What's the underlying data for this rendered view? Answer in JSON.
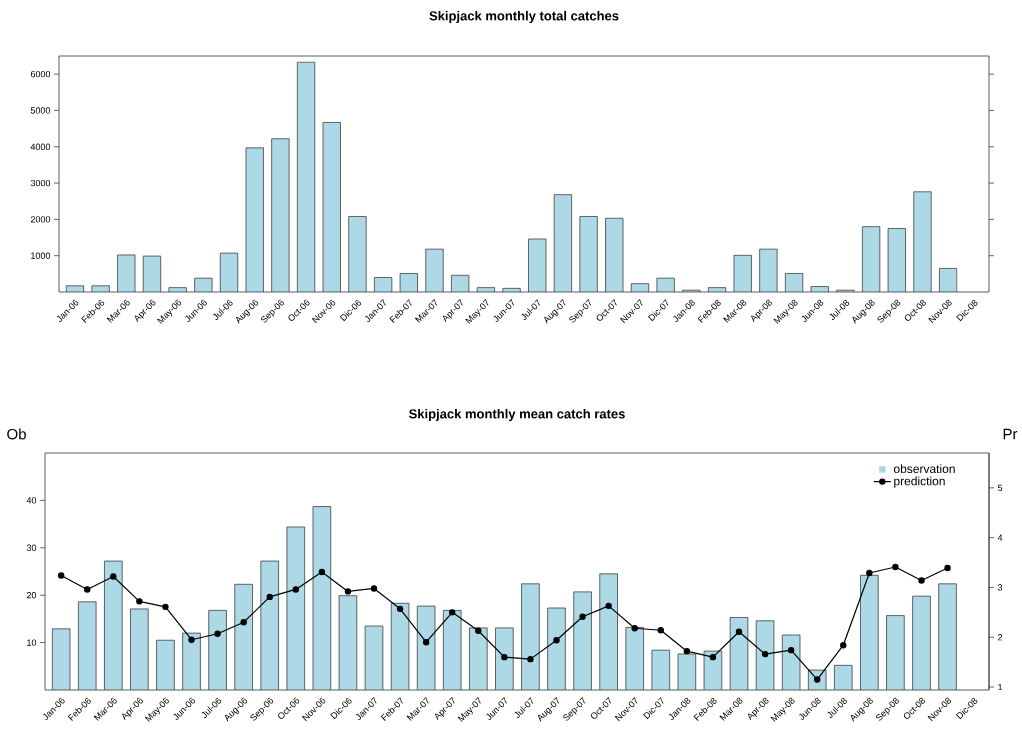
{
  "chart_data": [
    {
      "type": "bar",
      "title": "Skipjack monthly total catches",
      "categories": [
        "Jan-06",
        "Feb-06",
        "Mar-06",
        "Apr-06",
        "May-06",
        "Jun-06",
        "Jul-06",
        "Aug-06",
        "Sep-06",
        "Oct-06",
        "Nov-06",
        "Dic-06",
        "Jan-07",
        "Feb-07",
        "Mar-07",
        "Apr-07",
        "May-07",
        "Jun-07",
        "Jul-07",
        "Aug-07",
        "Sep-07",
        "Oct-07",
        "Nov-07",
        "Dic-07",
        "Jan-08",
        "Feb-08",
        "Mar-08",
        "Apr-08",
        "May-08",
        "Jun-08",
        "Jul-08",
        "Aug-08",
        "Sep-08",
        "Oct-08",
        "Nov-08",
        "Dic-08"
      ],
      "values": [
        170,
        170,
        1020,
        990,
        120,
        380,
        1070,
        3970,
        4220,
        6330,
        4670,
        2080,
        400,
        510,
        1180,
        460,
        120,
        100,
        1460,
        2680,
        2080,
        2030,
        230,
        380,
        50,
        120,
        1010,
        1180,
        510,
        150,
        50,
        1800,
        1750,
        2760,
        650,
        null
      ],
      "color": "#add8e6",
      "ylim": [
        0,
        6500
      ],
      "yticks": [
        1000,
        2000,
        3000,
        4000,
        5000,
        6000
      ]
    },
    {
      "type": "bar",
      "title": "Skipjack monthly mean catch rates",
      "ylabel": "Ob",
      "y2label": "Pr",
      "categories": [
        "Jan-06",
        "Feb-06",
        "Mar-06",
        "Apr-06",
        "May-06",
        "Jun-06",
        "Jul-06",
        "Aug-06",
        "Sep-06",
        "Oct-06",
        "Nov-06",
        "Dic-06",
        "Jan-07",
        "Feb-07",
        "Mar-07",
        "Apr-07",
        "May-07",
        "Jun-07",
        "Jul-07",
        "Aug-07",
        "Sep-07",
        "Oct-07",
        "Nov-07",
        "Dic-07",
        "Jan-08",
        "Feb-08",
        "Mar-08",
        "Apr-08",
        "May-08",
        "Jun-08",
        "Jul-08",
        "Aug-08",
        "Sep-08",
        "Oct-08",
        "Nov-08",
        "Dic-08"
      ],
      "series": [
        {
          "name": "observation",
          "type": "bar",
          "color": "#add8e6",
          "values": [
            12.9,
            18.6,
            27.2,
            17.1,
            10.5,
            12.0,
            16.8,
            22.3,
            27.2,
            34.4,
            38.7,
            19.9,
            13.5,
            18.3,
            17.7,
            16.8,
            13.1,
            13.1,
            22.4,
            17.3,
            20.7,
            24.5,
            13.2,
            8.4,
            7.6,
            8.2,
            15.3,
            14.6,
            11.6,
            4.2,
            5.2,
            24.2,
            15.7,
            19.8,
            22.4,
            null
          ]
        },
        {
          "name": "prediction",
          "type": "line",
          "axis": "y2",
          "color": "#000000",
          "marker": "circle",
          "values": [
            3.24,
            2.96,
            3.22,
            2.72,
            2.61,
            1.95,
            2.07,
            2.3,
            2.81,
            2.96,
            3.31,
            2.92,
            2.98,
            2.57,
            1.9,
            2.5,
            2.13,
            1.6,
            1.56,
            1.94,
            2.41,
            2.63,
            2.18,
            2.14,
            1.72,
            1.6,
            2.11,
            1.66,
            1.74,
            1.15,
            1.84,
            3.29,
            3.41,
            3.14,
            3.39,
            null
          ]
        }
      ],
      "ylim": [
        0,
        50
      ],
      "yticks": [
        10,
        20,
        30,
        40
      ],
      "y2lim": [
        0.94,
        5.7
      ],
      "y2ticks": [
        1,
        2,
        3,
        4,
        5
      ],
      "legend": "top right"
    }
  ]
}
